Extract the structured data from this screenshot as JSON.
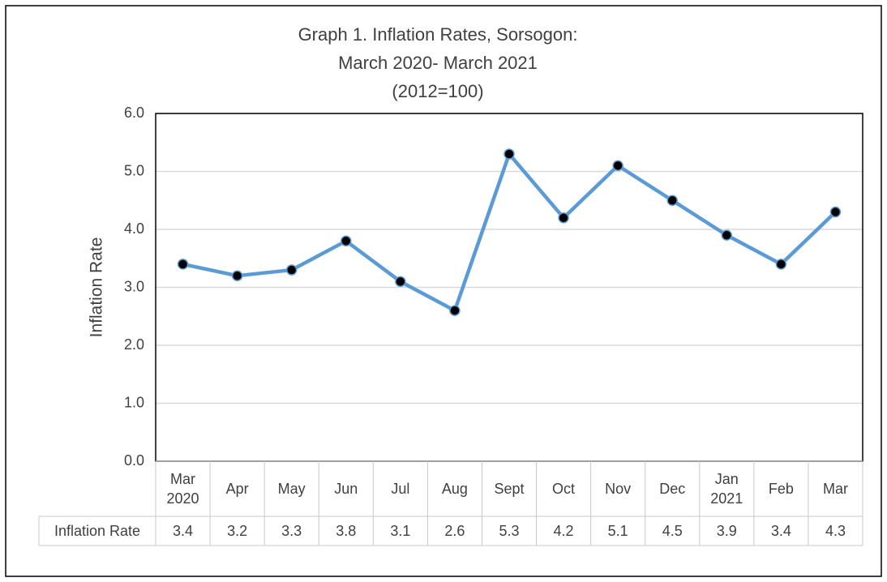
{
  "chart_data": {
    "type": "line",
    "title": [
      "Graph 1. Inflation Rates, Sorsogon:",
      "March 2020- March 2021",
      "(2012=100)"
    ],
    "y_label": "Inflation Rate",
    "categories": [
      "Mar 2020",
      "Apr",
      "May",
      "Jun",
      "Jul",
      "Aug",
      "Sept",
      "Oct",
      "Nov",
      "Dec",
      "Jan 2021",
      "Feb",
      "Mar"
    ],
    "series": [
      {
        "name": "Inflation Rate",
        "color": "#5b9bd5",
        "values": [
          3.4,
          3.2,
          3.3,
          3.8,
          3.1,
          2.6,
          5.3,
          4.2,
          5.1,
          4.5,
          3.9,
          3.4,
          4.3
        ]
      }
    ],
    "ylim": [
      0,
      6
    ],
    "yticks": [
      {
        "value": 0,
        "label": "0.0"
      },
      {
        "value": 1,
        "label": "1.0"
      },
      {
        "value": 2,
        "label": "2.0"
      },
      {
        "value": 3,
        "label": "3.0"
      },
      {
        "value": 4,
        "label": "4.0"
      },
      {
        "value": 5,
        "label": "5.0"
      },
      {
        "value": 6,
        "label": "6.0"
      }
    ],
    "grid": true,
    "data_table": true
  }
}
